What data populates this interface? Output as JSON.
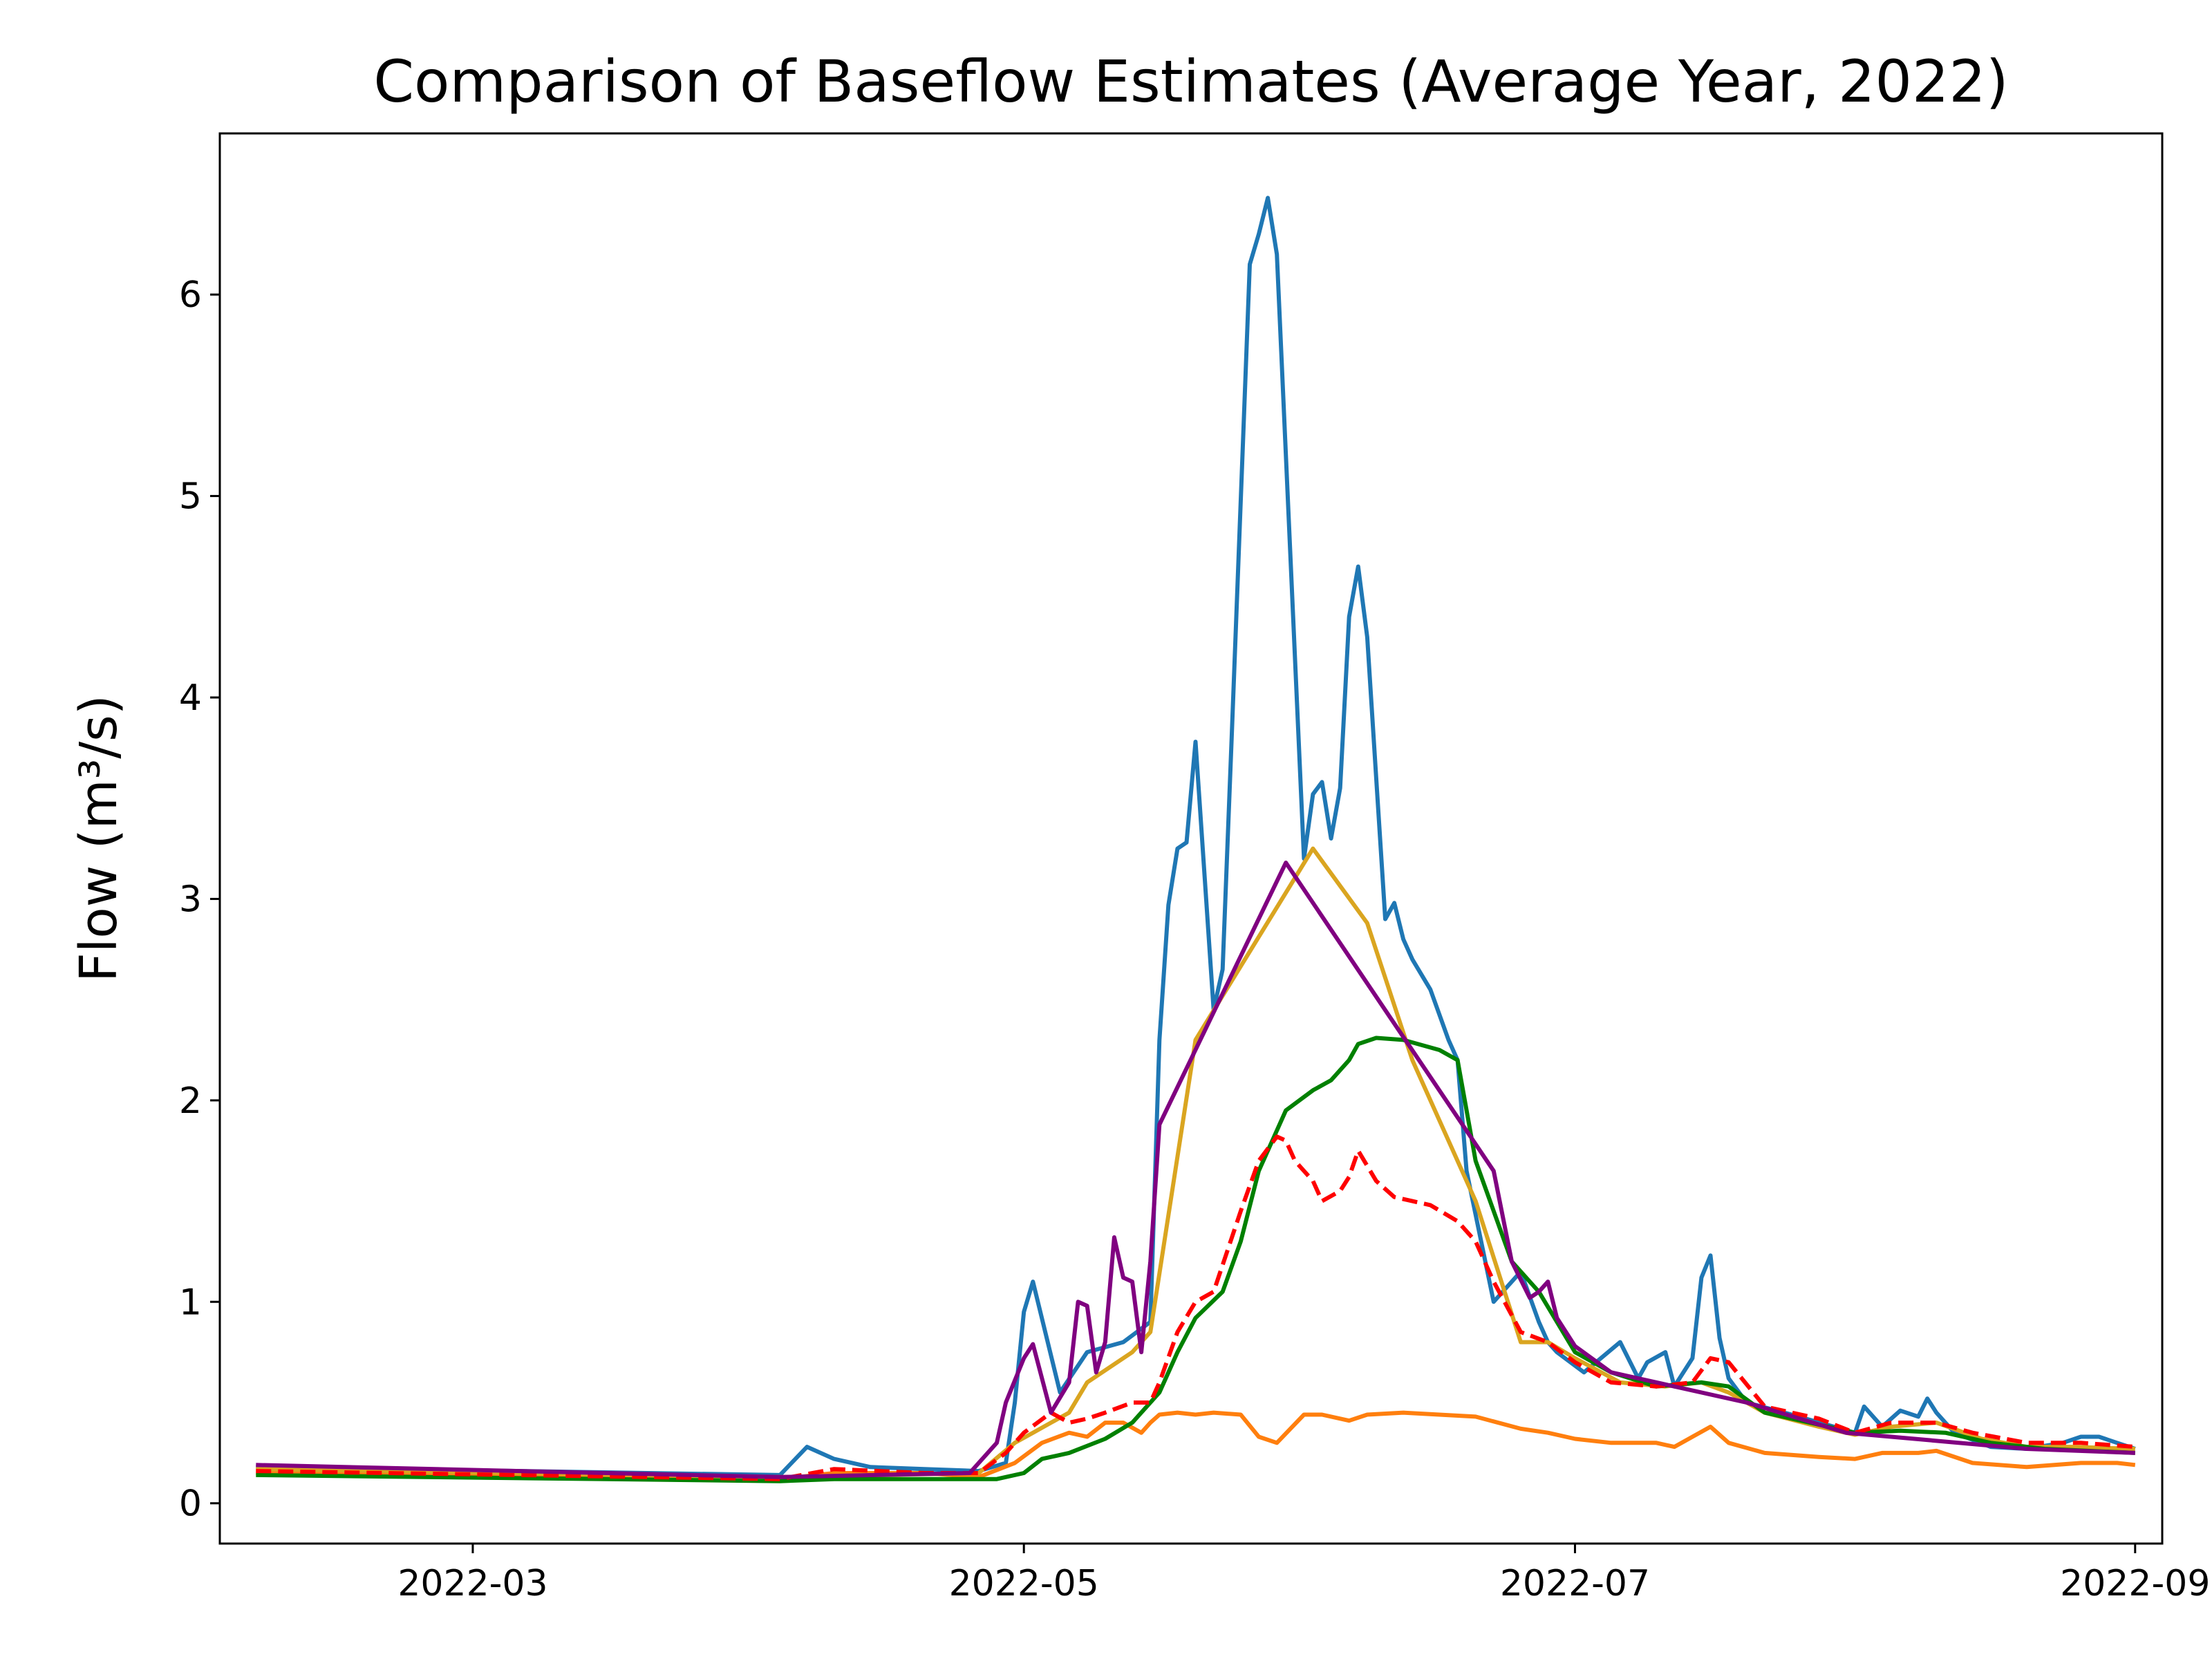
{
  "chart_data": {
    "type": "line",
    "title": "Comparison of Baseflow Estimates (Average Year, 2022)",
    "ylabel": "Flow (m³/s)",
    "xlabel": "",
    "xlim": [
      "2022-02-01",
      "2022-09-04"
    ],
    "ylim": [
      -0.2,
      6.8
    ],
    "x_ticks": [
      "2022-03",
      "2022-05",
      "2022-07",
      "2022-09"
    ],
    "y_ticks": [
      0,
      1,
      2,
      3,
      4,
      5,
      6
    ],
    "grid": false,
    "legend": false,
    "series": [
      {
        "color": "#1f77b4",
        "dash": false,
        "x": [
          "2022-02-05",
          "2022-04-04",
          "2022-04-07",
          "2022-04-10",
          "2022-04-14",
          "2022-04-20",
          "2022-04-26",
          "2022-04-29",
          "2022-04-30",
          "2022-05-01",
          "2022-05-02",
          "2022-05-05",
          "2022-05-08",
          "2022-05-12",
          "2022-05-15",
          "2022-05-16",
          "2022-05-17",
          "2022-05-18",
          "2022-05-19",
          "2022-05-20",
          "2022-05-22",
          "2022-05-23",
          "2022-05-24",
          "2022-05-26",
          "2022-05-27",
          "2022-05-28",
          "2022-05-29",
          "2022-06-01",
          "2022-06-02",
          "2022-06-03",
          "2022-06-04",
          "2022-06-05",
          "2022-06-06",
          "2022-06-07",
          "2022-06-08",
          "2022-06-09",
          "2022-06-10",
          "2022-06-11",
          "2022-06-12",
          "2022-06-13",
          "2022-06-15",
          "2022-06-17",
          "2022-06-18",
          "2022-06-19",
          "2022-06-22",
          "2022-06-25",
          "2022-06-27",
          "2022-06-28",
          "2022-06-29",
          "2022-07-02",
          "2022-07-06",
          "2022-07-08",
          "2022-07-09",
          "2022-07-11",
          "2022-07-12",
          "2022-07-14",
          "2022-07-15",
          "2022-07-16",
          "2022-07-17",
          "2022-07-18",
          "2022-07-20",
          "2022-07-25",
          "2022-08-01",
          "2022-08-02",
          "2022-08-04",
          "2022-08-06",
          "2022-08-08",
          "2022-08-09",
          "2022-08-10",
          "2022-08-12",
          "2022-08-16",
          "2022-08-20",
          "2022-08-24",
          "2022-08-26",
          "2022-08-28",
          "2022-08-30",
          "2022-09-01"
        ],
        "y": [
          0.18,
          0.14,
          0.28,
          0.22,
          0.18,
          0.17,
          0.16,
          0.2,
          0.5,
          0.95,
          1.1,
          0.55,
          0.75,
          0.8,
          0.9,
          2.3,
          2.97,
          3.25,
          3.28,
          3.78,
          2.45,
          2.65,
          3.8,
          6.15,
          6.3,
          6.48,
          6.2,
          3.2,
          3.52,
          3.58,
          3.3,
          3.55,
          4.4,
          4.65,
          4.3,
          3.6,
          2.9,
          2.98,
          2.8,
          2.7,
          2.55,
          2.3,
          2.2,
          1.65,
          1.0,
          1.15,
          0.9,
          0.8,
          0.75,
          0.65,
          0.8,
          0.62,
          0.7,
          0.75,
          0.58,
          0.72,
          1.12,
          1.23,
          0.82,
          0.62,
          0.5,
          0.44,
          0.35,
          0.48,
          0.38,
          0.46,
          0.43,
          0.52,
          0.45,
          0.35,
          0.28,
          0.27,
          0.3,
          0.33,
          0.33,
          0.3,
          0.27
        ]
      },
      {
        "color": "#ff7f0e",
        "dash": false,
        "x": [
          "2022-02-05",
          "2022-04-04",
          "2022-04-10",
          "2022-04-20",
          "2022-04-26",
          "2022-04-30",
          "2022-05-03",
          "2022-05-06",
          "2022-05-08",
          "2022-05-10",
          "2022-05-12",
          "2022-05-14",
          "2022-05-15",
          "2022-05-16",
          "2022-05-18",
          "2022-05-20",
          "2022-05-22",
          "2022-05-25",
          "2022-05-27",
          "2022-05-29",
          "2022-06-01",
          "2022-06-03",
          "2022-06-06",
          "2022-06-08",
          "2022-06-12",
          "2022-06-20",
          "2022-06-25",
          "2022-06-28",
          "2022-07-01",
          "2022-07-05",
          "2022-07-08",
          "2022-07-10",
          "2022-07-12",
          "2022-07-14",
          "2022-07-16",
          "2022-07-18",
          "2022-07-22",
          "2022-07-28",
          "2022-08-01",
          "2022-08-04",
          "2022-08-08",
          "2022-08-10",
          "2022-08-14",
          "2022-08-20",
          "2022-08-26",
          "2022-08-30",
          "2022-09-01"
        ],
        "y": [
          0.15,
          0.12,
          0.15,
          0.15,
          0.13,
          0.2,
          0.3,
          0.35,
          0.33,
          0.4,
          0.4,
          0.35,
          0.4,
          0.44,
          0.45,
          0.44,
          0.45,
          0.44,
          0.33,
          0.3,
          0.44,
          0.44,
          0.41,
          0.44,
          0.45,
          0.43,
          0.37,
          0.35,
          0.32,
          0.3,
          0.3,
          0.3,
          0.28,
          0.33,
          0.38,
          0.3,
          0.25,
          0.23,
          0.22,
          0.25,
          0.25,
          0.26,
          0.2,
          0.18,
          0.2,
          0.2,
          0.19
        ]
      },
      {
        "color": "#daa520",
        "dash": false,
        "x": [
          "2022-02-05",
          "2022-04-04",
          "2022-04-26",
          "2022-04-30",
          "2022-05-02",
          "2022-05-06",
          "2022-05-08",
          "2022-05-13",
          "2022-05-15",
          "2022-05-20",
          "2022-06-02",
          "2022-06-08",
          "2022-06-13",
          "2022-06-20",
          "2022-06-25",
          "2022-06-28",
          "2022-07-01",
          "2022-07-06",
          "2022-07-11",
          "2022-07-15",
          "2022-07-18",
          "2022-07-22",
          "2022-07-28",
          "2022-08-01",
          "2022-08-05",
          "2022-08-10",
          "2022-08-15",
          "2022-08-20",
          "2022-08-25",
          "2022-09-01"
        ],
        "y": [
          0.17,
          0.13,
          0.15,
          0.3,
          0.35,
          0.45,
          0.6,
          0.75,
          0.85,
          2.3,
          3.25,
          2.88,
          2.2,
          1.5,
          0.8,
          0.8,
          0.72,
          0.6,
          0.58,
          0.6,
          0.55,
          0.45,
          0.38,
          0.34,
          0.38,
          0.4,
          0.32,
          0.28,
          0.28,
          0.27
        ]
      },
      {
        "color": "#008000",
        "dash": false,
        "x": [
          "2022-02-05",
          "2022-04-04",
          "2022-04-10",
          "2022-04-20",
          "2022-04-28",
          "2022-05-01",
          "2022-05-03",
          "2022-05-06",
          "2022-05-10",
          "2022-05-13",
          "2022-05-16",
          "2022-05-18",
          "2022-05-20",
          "2022-05-23",
          "2022-05-25",
          "2022-05-27",
          "2022-05-30",
          "2022-06-02",
          "2022-06-04",
          "2022-06-06",
          "2022-06-07",
          "2022-06-09",
          "2022-06-12",
          "2022-06-16",
          "2022-06-18",
          "2022-06-20",
          "2022-06-24",
          "2022-06-27",
          "2022-07-01",
          "2022-07-05",
          "2022-07-10",
          "2022-07-15",
          "2022-07-18",
          "2022-07-22",
          "2022-08-01",
          "2022-08-06",
          "2022-08-11",
          "2022-08-16",
          "2022-08-22",
          "2022-09-01"
        ],
        "y": [
          0.14,
          0.11,
          0.12,
          0.12,
          0.12,
          0.15,
          0.22,
          0.25,
          0.32,
          0.4,
          0.55,
          0.75,
          0.92,
          1.05,
          1.3,
          1.65,
          1.95,
          2.05,
          2.1,
          2.2,
          2.28,
          2.31,
          2.3,
          2.25,
          2.2,
          1.7,
          1.2,
          1.05,
          0.75,
          0.65,
          0.58,
          0.6,
          0.58,
          0.45,
          0.35,
          0.36,
          0.35,
          0.3,
          0.27,
          0.25
        ]
      },
      {
        "color": "#ff0000",
        "dash": true,
        "x": [
          "2022-02-05",
          "2022-04-04",
          "2022-04-10",
          "2022-04-20",
          "2022-04-26",
          "2022-04-29",
          "2022-05-01",
          "2022-05-04",
          "2022-05-06",
          "2022-05-08",
          "2022-05-10",
          "2022-05-13",
          "2022-05-15",
          "2022-05-16",
          "2022-05-18",
          "2022-05-20",
          "2022-05-22",
          "2022-05-25",
          "2022-05-27",
          "2022-05-29",
          "2022-05-30",
          "2022-05-31",
          "2022-06-02",
          "2022-06-03",
          "2022-06-05",
          "2022-06-06",
          "2022-06-07",
          "2022-06-09",
          "2022-06-11",
          "2022-06-13",
          "2022-06-15",
          "2022-06-18",
          "2022-06-20",
          "2022-06-22",
          "2022-06-25",
          "2022-06-28",
          "2022-07-01",
          "2022-07-05",
          "2022-07-10",
          "2022-07-14",
          "2022-07-16",
          "2022-07-18",
          "2022-07-22",
          "2022-07-28",
          "2022-08-01",
          "2022-08-05",
          "2022-08-10",
          "2022-08-14",
          "2022-08-20",
          "2022-08-26",
          "2022-09-01"
        ],
        "y": [
          0.16,
          0.12,
          0.17,
          0.15,
          0.15,
          0.25,
          0.35,
          0.45,
          0.4,
          0.42,
          0.45,
          0.5,
          0.5,
          0.6,
          0.85,
          1.0,
          1.05,
          1.45,
          1.7,
          1.82,
          1.8,
          1.7,
          1.6,
          1.5,
          1.55,
          1.62,
          1.75,
          1.6,
          1.52,
          1.5,
          1.48,
          1.4,
          1.3,
          1.1,
          0.85,
          0.8,
          0.7,
          0.6,
          0.58,
          0.6,
          0.72,
          0.7,
          0.48,
          0.42,
          0.35,
          0.4,
          0.4,
          0.35,
          0.3,
          0.3,
          0.28
        ]
      },
      {
        "color": "#800080",
        "dash": false,
        "x": [
          "2022-02-05",
          "2022-04-04",
          "2022-04-25",
          "2022-04-28",
          "2022-04-29",
          "2022-05-01",
          "2022-05-02",
          "2022-05-04",
          "2022-05-06",
          "2022-05-07",
          "2022-05-08",
          "2022-05-09",
          "2022-05-10",
          "2022-05-11",
          "2022-05-12",
          "2022-05-13",
          "2022-05-14",
          "2022-05-15",
          "2022-05-16",
          "2022-05-30",
          "2022-06-22",
          "2022-06-24",
          "2022-06-26",
          "2022-06-27",
          "2022-06-28",
          "2022-06-29",
          "2022-07-01",
          "2022-07-05",
          "2022-07-20",
          "2022-07-31",
          "2022-08-20",
          "2022-09-01"
        ],
        "y": [
          0.19,
          0.13,
          0.15,
          0.3,
          0.5,
          0.72,
          0.79,
          0.45,
          0.6,
          1.0,
          0.98,
          0.65,
          0.8,
          1.32,
          1.12,
          1.1,
          0.75,
          1.2,
          1.88,
          3.18,
          1.65,
          1.2,
          1.02,
          1.05,
          1.1,
          0.92,
          0.78,
          0.65,
          0.5,
          0.35,
          0.27,
          0.25
        ]
      }
    ]
  }
}
